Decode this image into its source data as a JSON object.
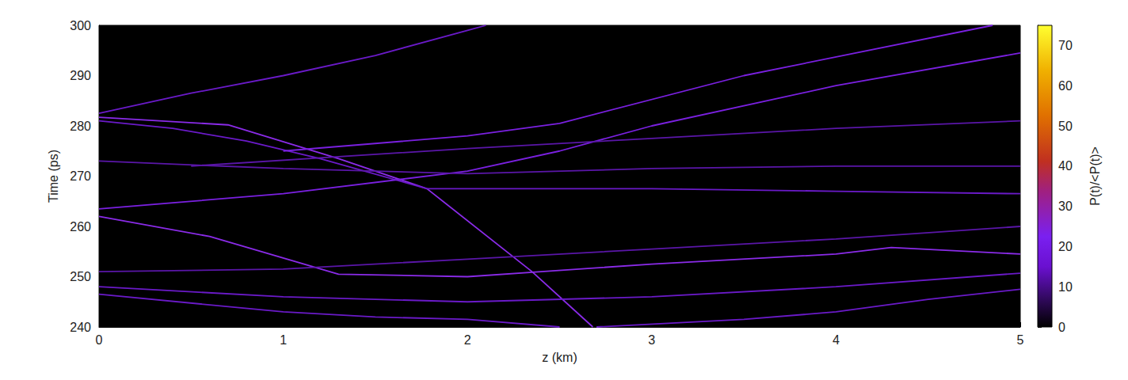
{
  "chart_data": {
    "type": "line",
    "xlabel": "z (km)",
    "ylabel": "Time (ps)",
    "xlim": [
      0,
      5
    ],
    "ylim": [
      240,
      300
    ],
    "xticks": [
      0,
      1,
      2,
      3,
      4,
      5
    ],
    "yticks": [
      240,
      250,
      260,
      270,
      280,
      290,
      300
    ],
    "series": [
      {
        "color": "#8a2be8",
        "x": [
          0,
          0.7,
          1.3,
          1.78,
          2.35,
          2.68
        ],
        "values": [
          281.7,
          280.2,
          273.5,
          267.5,
          251,
          240
        ]
      },
      {
        "color": "#6a1ac8",
        "x": [
          0,
          0.5,
          1,
          1.5,
          2,
          2.1
        ],
        "values": [
          282.5,
          286.5,
          290,
          294,
          299,
          300
        ]
      },
      {
        "color": "#6a1ac8",
        "x": [
          0,
          0.4,
          0.8,
          1.2,
          1.78
        ],
        "values": [
          281,
          279.5,
          277,
          273.5,
          267.5
        ]
      },
      {
        "color": "#6a1ac8",
        "x": [
          1.78,
          3,
          4,
          5
        ],
        "values": [
          267.5,
          267.5,
          267,
          266.5
        ]
      },
      {
        "color": "#7a20e0",
        "x": [
          0,
          1,
          2,
          2.5,
          3,
          4,
          5
        ],
        "values": [
          263.5,
          266.5,
          271,
          275,
          280,
          288,
          294.5
        ]
      },
      {
        "color": "#7a20e0",
        "x": [
          1,
          2,
          2.5,
          3.5,
          4.85
        ],
        "values": [
          275,
          278,
          280.5,
          290,
          300
        ]
      },
      {
        "color": "#5a16a8",
        "x": [
          0.5,
          2,
          3,
          4,
          5
        ],
        "values": [
          272,
          275.5,
          277.5,
          279.5,
          281
        ]
      },
      {
        "color": "#8a2be8",
        "x": [
          0,
          0.6,
          1.3,
          2,
          2.4,
          3,
          4,
          4.3,
          5
        ],
        "values": [
          262,
          258,
          250.5,
          250,
          251,
          252.5,
          254.5,
          255.8,
          254.5
        ]
      },
      {
        "color": "#5a16a8",
        "x": [
          0,
          1,
          2,
          3,
          4,
          5
        ],
        "values": [
          251,
          251.5,
          253.5,
          255.5,
          257.5,
          260
        ]
      },
      {
        "color": "#6a1ac8",
        "x": [
          0,
          1,
          1.5,
          2,
          2.5
        ],
        "values": [
          246.5,
          243,
          242,
          241.5,
          240
        ]
      },
      {
        "color": "#6a1ac8",
        "x": [
          0,
          1,
          2,
          3,
          4,
          5
        ],
        "values": [
          248,
          246,
          245,
          246,
          248,
          250.7
        ]
      },
      {
        "color": "#6a1ac8",
        "x": [
          2.7,
          3.5,
          4,
          4.5,
          5
        ],
        "values": [
          240,
          241.5,
          243,
          245.5,
          247.5
        ]
      },
      {
        "color": "#5a16a8",
        "x": [
          0,
          1,
          2,
          3,
          4,
          5
        ],
        "values": [
          273,
          271.5,
          270.5,
          271.5,
          272,
          272
        ]
      }
    ],
    "colorbar": {
      "label": "P(t)/<P(t)>",
      "range": [
        0,
        75
      ],
      "ticks": [
        0,
        10,
        20,
        30,
        40,
        50,
        60,
        70
      ]
    }
  }
}
